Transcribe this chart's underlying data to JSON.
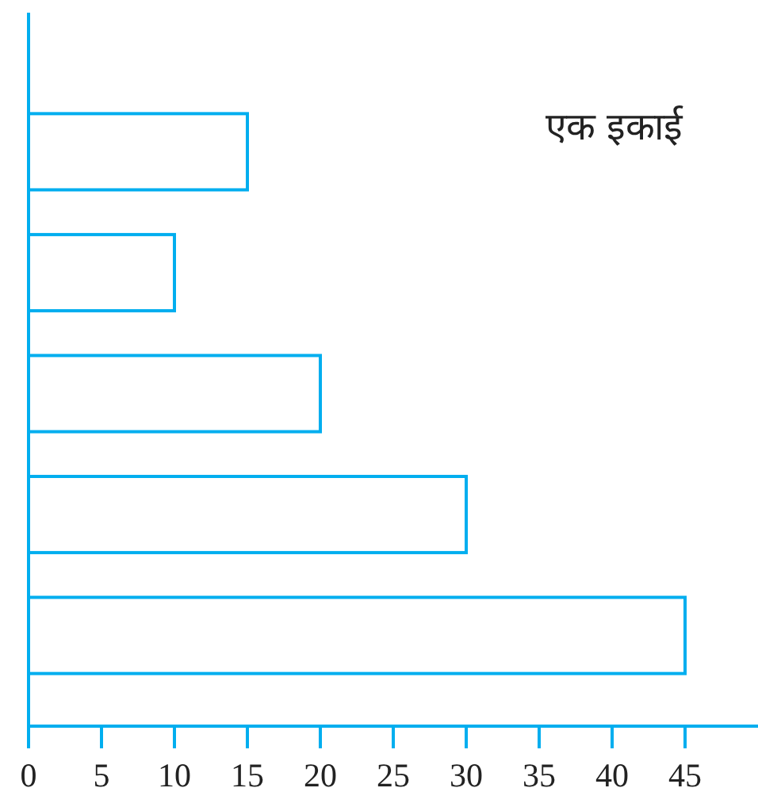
{
  "chart_data": {
    "type": "bar",
    "orientation": "horizontal",
    "categories": [
      null,
      null,
      null,
      null,
      null
    ],
    "values": [
      15,
      10,
      20,
      30,
      45
    ],
    "color": "#00aeef",
    "xlim": [
      0,
      50
    ],
    "xticks": [
      0,
      5,
      10,
      15,
      20,
      25,
      30,
      35,
      40,
      45
    ],
    "annotations": [
      "एक इकाई"
    ],
    "grid": false
  }
}
